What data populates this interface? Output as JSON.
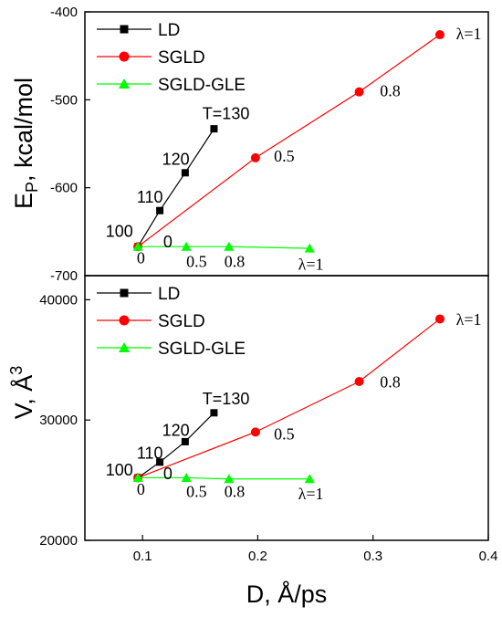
{
  "colors": {
    "LD": "#000000",
    "SGLD": "#ff0000",
    "SGLD-GLE": "#00ff00"
  },
  "xaxis": {
    "label": "D, Å/ps",
    "xlim": [
      0.05,
      0.4
    ],
    "ticks": [
      0.1,
      0.2,
      0.3,
      0.4
    ],
    "tick_labels": [
      "0.1",
      "0.2",
      "0.3",
      "0.4"
    ]
  },
  "chart_data": [
    {
      "type": "line",
      "panel": "top",
      "ylabel": "EP, kcal/mol",
      "ylabel_main": "E",
      "ylabel_sub": "P",
      "ylabel_rest": ", kcal/mol",
      "ylim": [
        -700,
        -400
      ],
      "yticks": [
        -700,
        -600,
        -500,
        -400
      ],
      "ytick_labels": [
        "-700",
        "-600",
        "-500",
        "-400"
      ],
      "legend_placement": "top-left",
      "series": [
        {
          "name": "LD",
          "marker": "square",
          "x": [
            0.096,
            0.115,
            0.137,
            0.162
          ],
          "y": [
            -667,
            -626,
            -583,
            -533
          ]
        },
        {
          "name": "SGLD",
          "marker": "circle",
          "x": [
            0.096,
            0.198,
            0.288,
            0.358
          ],
          "y": [
            -667,
            -566,
            -491,
            -426
          ]
        },
        {
          "name": "SGLD-GLE",
          "marker": "triangle",
          "x": [
            0.096,
            0.138,
            0.175,
            0.245
          ],
          "y": [
            -667,
            -667,
            -667,
            -669
          ]
        }
      ],
      "annotations": [
        {
          "text": "T=130",
          "x": 0.152,
          "y": -522,
          "font": "sans"
        },
        {
          "text": "120",
          "x": 0.117,
          "y": -574,
          "font": "sans"
        },
        {
          "text": "110",
          "x": 0.095,
          "y": -617,
          "font": "sans"
        },
        {
          "text": "100",
          "x": 0.068,
          "y": -656,
          "font": "sans"
        },
        {
          "text": "0",
          "x": 0.118,
          "y": -668,
          "font": "sans"
        },
        {
          "text": "0",
          "x": 0.095,
          "y": -686,
          "font": "serif"
        },
        {
          "text": "0.5",
          "x": 0.138,
          "y": -690,
          "font": "serif"
        },
        {
          "text": "0.8",
          "x": 0.171,
          "y": -690,
          "font": "serif"
        },
        {
          "text": "λ=1",
          "x": 0.235,
          "y": -693,
          "font": "serif"
        },
        {
          "text": "0.5",
          "x": 0.214,
          "y": -570,
          "font": "serif"
        },
        {
          "text": "0.8",
          "x": 0.306,
          "y": -496,
          "font": "serif"
        },
        {
          "text": "λ=1",
          "x": 0.372,
          "y": -431,
          "font": "serif"
        }
      ]
    },
    {
      "type": "line",
      "panel": "bottom",
      "ylabel": "V, Å3",
      "ylabel_main": "V, Å",
      "ylabel_sup": "3",
      "ylim": [
        20000,
        42000
      ],
      "yticks": [
        20000,
        30000,
        40000
      ],
      "ytick_labels": [
        "20000",
        "30000",
        "40000"
      ],
      "legend_placement": "top-left",
      "series": [
        {
          "name": "LD",
          "marker": "square",
          "x": [
            0.096,
            0.115,
            0.137,
            0.162
          ],
          "y": [
            25200,
            26500,
            28200,
            30600
          ]
        },
        {
          "name": "SGLD",
          "marker": "circle",
          "x": [
            0.096,
            0.198,
            0.288,
            0.358
          ],
          "y": [
            25200,
            29000,
            33200,
            38400
          ]
        },
        {
          "name": "SGLD-GLE",
          "marker": "triangle",
          "x": [
            0.096,
            0.138,
            0.175,
            0.245
          ],
          "y": [
            25200,
            25200,
            25100,
            25100
          ]
        }
      ],
      "annotations": [
        {
          "text": "T=130",
          "x": 0.152,
          "y": 31300,
          "font": "sans"
        },
        {
          "text": "120",
          "x": 0.117,
          "y": 28700,
          "font": "sans"
        },
        {
          "text": "110",
          "x": 0.095,
          "y": 26800,
          "font": "sans"
        },
        {
          "text": "100",
          "x": 0.068,
          "y": 25400,
          "font": "sans"
        },
        {
          "text": "0",
          "x": 0.118,
          "y": 25100,
          "font": "sans"
        },
        {
          "text": "0",
          "x": 0.095,
          "y": 23800,
          "font": "serif"
        },
        {
          "text": "0.5",
          "x": 0.138,
          "y": 23600,
          "font": "serif"
        },
        {
          "text": "0.8",
          "x": 0.171,
          "y": 23600,
          "font": "serif"
        },
        {
          "text": "λ=1",
          "x": 0.235,
          "y": 23400,
          "font": "serif"
        },
        {
          "text": "0.5",
          "x": 0.214,
          "y": 28400,
          "font": "serif"
        },
        {
          "text": "0.8",
          "x": 0.306,
          "y": 32700,
          "font": "serif"
        },
        {
          "text": "λ=1",
          "x": 0.372,
          "y": 37900,
          "font": "serif"
        }
      ]
    }
  ]
}
